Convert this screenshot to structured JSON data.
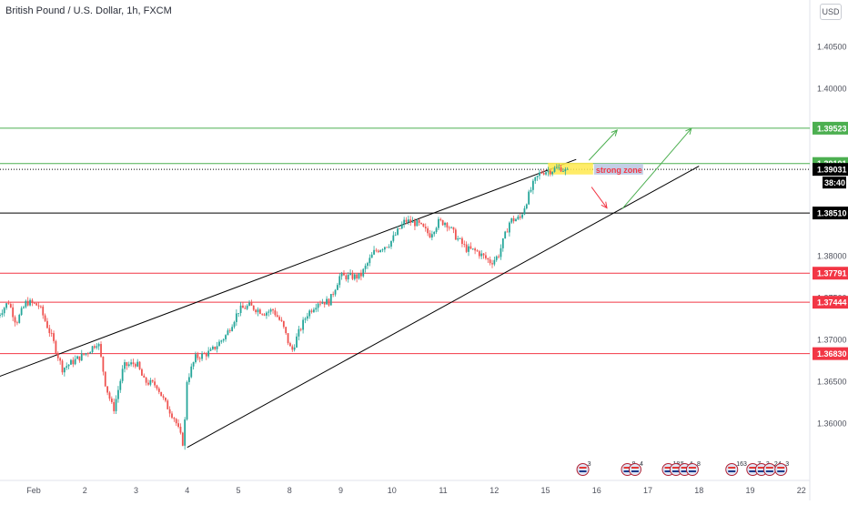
{
  "header": {
    "title": "British Pound / U.S. Dollar, 1h, FXCM",
    "currency_button": "USD"
  },
  "colors": {
    "up": "#26a69a",
    "down": "#ef5350",
    "green_level": "#4caf50",
    "red_level": "#f23645",
    "black_level": "#000000",
    "zone_fill": "#ffe94d",
    "zone_label_bg": "#c3cfe6",
    "zone_text": "#f23645"
  },
  "chart_data": {
    "type": "candlestick",
    "title": "British Pound / U.S. Dollar, 1h, FXCM",
    "x_ticks": [
      {
        "label": "Feb",
        "day": 0
      },
      {
        "label": "2",
        "day": 1
      },
      {
        "label": "3",
        "day": 2
      },
      {
        "label": "4",
        "day": 3
      },
      {
        "label": "5",
        "day": 4
      },
      {
        "label": "8",
        "day": 5
      },
      {
        "label": "9",
        "day": 6
      },
      {
        "label": "10",
        "day": 7
      },
      {
        "label": "11",
        "day": 8
      },
      {
        "label": "12",
        "day": 9
      },
      {
        "label": "15",
        "day": 10
      },
      {
        "label": "16",
        "day": 11
      },
      {
        "label": "17",
        "day": 12
      },
      {
        "label": "18",
        "day": 13
      },
      {
        "label": "19",
        "day": 14
      },
      {
        "label": "22",
        "day": 15
      }
    ],
    "y_ticks": [
      "1.36000",
      "1.36500",
      "1.37000",
      "1.37500",
      "1.38000",
      "1.38500",
      "1.39000",
      "1.39500",
      "1.40000",
      "1.40500"
    ],
    "ylim": [
      1.3556,
      1.4105
    ],
    "x_range": [
      -0.7,
      15.2
    ],
    "price_anchors": [
      [
        -0.7,
        1.3725
      ],
      [
        -0.45,
        1.3745
      ],
      [
        -0.3,
        1.372
      ],
      [
        -0.1,
        1.3745
      ],
      [
        0.15,
        1.374
      ],
      [
        0.4,
        1.3702
      ],
      [
        0.6,
        1.3665
      ],
      [
        0.85,
        1.3675
      ],
      [
        1.1,
        1.3685
      ],
      [
        1.3,
        1.3698
      ],
      [
        1.45,
        1.3645
      ],
      [
        1.6,
        1.3615
      ],
      [
        1.8,
        1.3668
      ],
      [
        2.05,
        1.3672
      ],
      [
        2.2,
        1.365
      ],
      [
        2.45,
        1.3645
      ],
      [
        2.6,
        1.3625
      ],
      [
        2.8,
        1.3605
      ],
      [
        2.98,
        1.3572
      ],
      [
        3.02,
        1.3648
      ],
      [
        3.2,
        1.3678
      ],
      [
        3.5,
        1.3685
      ],
      [
        3.8,
        1.3705
      ],
      [
        4.05,
        1.3735
      ],
      [
        4.25,
        1.374
      ],
      [
        4.55,
        1.3732
      ],
      [
        4.72,
        1.3735
      ],
      [
        4.9,
        1.3718
      ],
      [
        5.08,
        1.3685
      ],
      [
        5.2,
        1.3705
      ],
      [
        5.38,
        1.373
      ],
      [
        5.6,
        1.3745
      ],
      [
        5.82,
        1.3745
      ],
      [
        6.02,
        1.3775
      ],
      [
        6.2,
        1.3775
      ],
      [
        6.42,
        1.3775
      ],
      [
        6.7,
        1.3805
      ],
      [
        7.0,
        1.3815
      ],
      [
        7.3,
        1.3842
      ],
      [
        7.55,
        1.3838
      ],
      [
        7.78,
        1.3825
      ],
      [
        7.95,
        1.384
      ],
      [
        8.1,
        1.384
      ],
      [
        8.3,
        1.3822
      ],
      [
        8.5,
        1.3808
      ],
      [
        8.7,
        1.3805
      ],
      [
        8.98,
        1.3792
      ],
      [
        9.12,
        1.38
      ],
      [
        9.35,
        1.3842
      ],
      [
        9.55,
        1.3845
      ],
      [
        9.7,
        1.387
      ],
      [
        9.82,
        1.3888
      ],
      [
        9.95,
        1.39
      ],
      [
        10.15,
        1.3902
      ],
      [
        10.35,
        1.3905
      ],
      [
        10.45,
        1.39
      ]
    ],
    "levels": [
      {
        "price": 1.39523,
        "label": "1.39523",
        "color": "green"
      },
      {
        "price": 1.39101,
        "label": "1.39101",
        "color": "green"
      },
      {
        "price": 1.3851,
        "label": "1.38510",
        "color": "black"
      },
      {
        "price": 1.37791,
        "label": "1.37791",
        "color": "red"
      },
      {
        "price": 1.37444,
        "label": "1.37444",
        "color": "red"
      },
      {
        "price": 1.3683,
        "label": "1.36830",
        "color": "red"
      }
    ],
    "last_price": {
      "price": 1.39031,
      "label": "1.39031",
      "countdown": "38:40"
    },
    "trendlines": [
      {
        "from": [
          -0.7,
          1.3655
        ],
        "to": [
          10.6,
          1.3915
        ],
        "color": "black"
      },
      {
        "from": [
          3.0,
          1.3571
        ],
        "to": [
          13.0,
          1.3907
        ],
        "color": "black"
      }
    ],
    "zone": {
      "day_from": 10.05,
      "day_to": 10.93,
      "price_top": 1.3911,
      "price_bottom": 1.3897,
      "label": "strong zone"
    },
    "arrows": [
      {
        "from": [
          10.85,
          1.3914
        ],
        "to": [
          11.4,
          1.395
        ],
        "color": "green"
      },
      {
        "from": [
          11.5,
          1.3856
        ],
        "to": [
          12.85,
          1.3952
        ],
        "color": "green"
      },
      {
        "from": [
          10.9,
          1.3882
        ],
        "to": [
          11.2,
          1.3857
        ],
        "color": "red"
      }
    ],
    "events": [
      {
        "day": 10.73,
        "count": "3"
      },
      {
        "day": 11.6,
        "count": "8"
      },
      {
        "day": 11.75,
        "count": "4"
      },
      {
        "day": 12.4,
        "count": "18"
      },
      {
        "day": 12.55,
        "count": "5"
      },
      {
        "day": 12.72,
        "count": "4"
      },
      {
        "day": 12.87,
        "count": "8"
      },
      {
        "day": 13.64,
        "count": "163"
      },
      {
        "day": 14.05,
        "count": "7"
      },
      {
        "day": 14.22,
        "count": "3"
      },
      {
        "day": 14.38,
        "count": "24"
      },
      {
        "day": 14.6,
        "count": "3"
      }
    ]
  }
}
